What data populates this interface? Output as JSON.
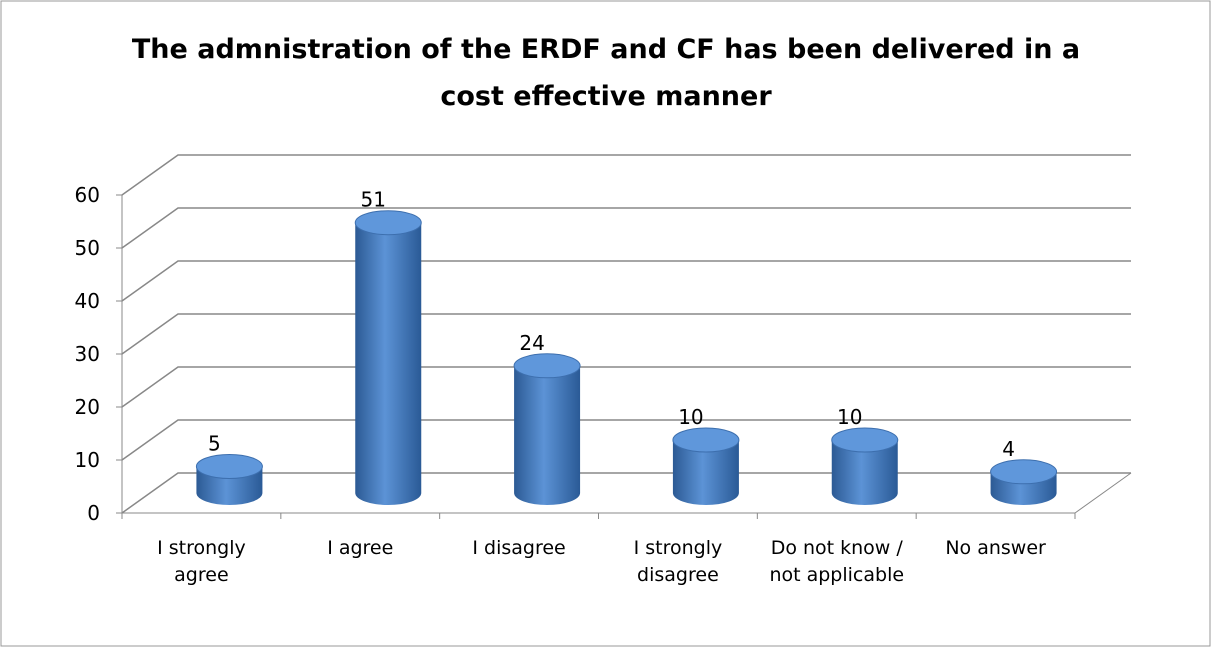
{
  "chart_data": {
    "type": "bar3d",
    "title": "The admnistration of the ERDF and CF has been delivered in a cost effective manner",
    "categories": [
      "I strongly agree",
      "I agree",
      "I disagree",
      "I strongly disagree",
      "Do not know / not applicable",
      "No answer"
    ],
    "values": [
      5,
      51,
      24,
      10,
      10,
      4
    ],
    "color": "#4a7ebb",
    "ylim": [
      0,
      60
    ],
    "yticks": [
      0,
      10,
      20,
      30,
      40,
      50,
      60
    ],
    "grid": true
  }
}
